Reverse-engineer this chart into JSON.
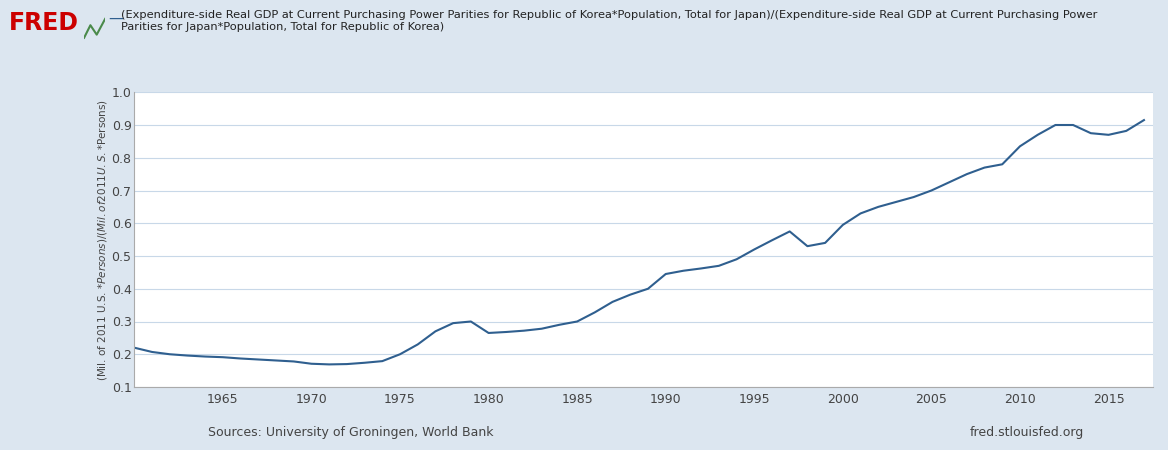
{
  "title_line1": "(Expenditure-side Real GDP at Current Purchasing Power Parities for Republic of Korea*Population, Total for Japan)/(Expenditure-side Real GDP at Current Purchasing Power",
  "title_line2": "Parities for Japan*Population, Total for Republic of Korea)",
  "ylabel": "(Mil. of 2011 U.S. $*Persons)/(Mil. of 2011 U.S. $*Persons)",
  "source_left": "Sources: University of Groningen, World Bank",
  "source_right": "fred.stlouisfed.org",
  "line_color": "#2f5f8f",
  "background_color": "#dce6f0",
  "plot_background": "#ffffff",
  "fred_red": "#cc0000",
  "ylim": [
    0.1,
    1.0
  ],
  "years": [
    1960,
    1961,
    1962,
    1963,
    1964,
    1965,
    1966,
    1967,
    1968,
    1969,
    1970,
    1971,
    1972,
    1973,
    1974,
    1975,
    1976,
    1977,
    1978,
    1979,
    1980,
    1981,
    1982,
    1983,
    1984,
    1985,
    1986,
    1987,
    1988,
    1989,
    1990,
    1991,
    1992,
    1993,
    1994,
    1995,
    1996,
    1997,
    1998,
    1999,
    2000,
    2001,
    2002,
    2003,
    2004,
    2005,
    2006,
    2007,
    2008,
    2009,
    2010,
    2011,
    2012,
    2013,
    2014,
    2015,
    2016,
    2017
  ],
  "values": [
    0.22,
    0.207,
    0.2,
    0.196,
    0.193,
    0.191,
    0.187,
    0.184,
    0.181,
    0.178,
    0.171,
    0.169,
    0.17,
    0.174,
    0.179,
    0.2,
    0.23,
    0.27,
    0.295,
    0.3,
    0.265,
    0.268,
    0.272,
    0.278,
    0.29,
    0.3,
    0.328,
    0.36,
    0.382,
    0.4,
    0.445,
    0.455,
    0.462,
    0.47,
    0.49,
    0.52,
    0.548,
    0.575,
    0.53,
    0.54,
    0.595,
    0.63,
    0.65,
    0.665,
    0.68,
    0.7,
    0.725,
    0.75,
    0.77,
    0.78,
    0.835,
    0.87,
    0.9,
    0.9,
    0.875,
    0.87,
    0.882,
    0.915
  ],
  "xlim_start": 1960,
  "xlim_end": 2017.5,
  "xticks": [
    1965,
    1970,
    1975,
    1980,
    1985,
    1990,
    1995,
    2000,
    2005,
    2010,
    2015
  ],
  "yticks": [
    0.1,
    0.2,
    0.3,
    0.4,
    0.5,
    0.6,
    0.7,
    0.8,
    0.9,
    1.0
  ]
}
